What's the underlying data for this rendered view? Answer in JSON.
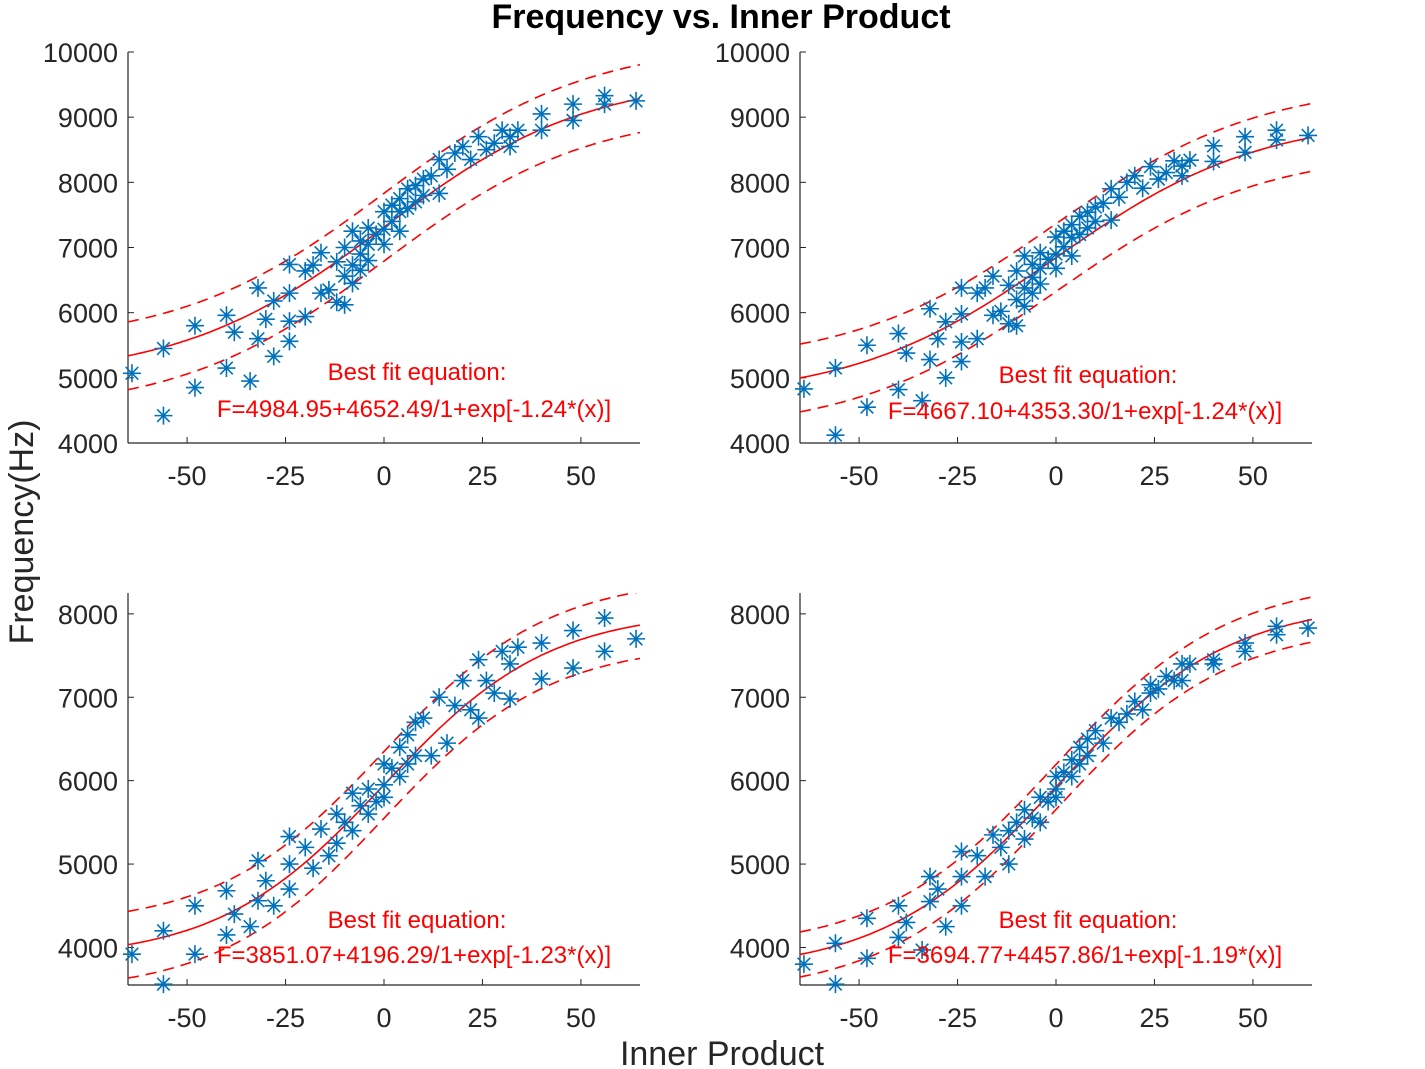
{
  "figure": {
    "title": "Frequency vs. Inner Product",
    "xlabel": "Inner Product",
    "ylabel": "Frequency(Hz)"
  },
  "chart_data": [
    {
      "type": "scatter",
      "position": "top-left",
      "xlim": [
        -65,
        65
      ],
      "ylim": [
        4000,
        10000
      ],
      "xticks": [
        -50,
        -25,
        0,
        25,
        50
      ],
      "yticks": [
        4000,
        5000,
        6000,
        7000,
        8000,
        9000,
        10000
      ],
      "ytick_labels": [
        "4000",
        "5000",
        "6000",
        "7000",
        "8000",
        "9000",
        "10000"
      ],
      "annotation": [
        "Best fit equation:",
        "F=4984.95+4652.49/1+exp[-1.24*(x)]"
      ],
      "fit": {
        "base": 4984.95,
        "amp": 4652.49,
        "center": 0,
        "scale": 26,
        "band": 520
      },
      "colors": {
        "points": "#0072BD",
        "fit": "#ff0000"
      },
      "points": [
        [
          -64,
          5070
        ],
        [
          -56,
          5450
        ],
        [
          -56,
          4420
        ],
        [
          -48,
          5800
        ],
        [
          -48,
          4850
        ],
        [
          -40,
          5960
        ],
        [
          -40,
          5150
        ],
        [
          -38,
          5700
        ],
        [
          -34,
          4950
        ],
        [
          -32,
          6380
        ],
        [
          -32,
          5600
        ],
        [
          -30,
          5900
        ],
        [
          -28,
          6180
        ],
        [
          -28,
          5330
        ],
        [
          -24,
          6740
        ],
        [
          -24,
          6300
        ],
        [
          -24,
          5870
        ],
        [
          -24,
          5560
        ],
        [
          -20,
          6640
        ],
        [
          -20,
          5940
        ],
        [
          -18,
          6730
        ],
        [
          -16,
          6920
        ],
        [
          -16,
          6300
        ],
        [
          -14,
          6350
        ],
        [
          -12,
          6780
        ],
        [
          -12,
          6160
        ],
        [
          -10,
          7000
        ],
        [
          -10,
          6560
        ],
        [
          -10,
          6120
        ],
        [
          -8,
          7250
        ],
        [
          -8,
          6730
        ],
        [
          -8,
          6450
        ],
        [
          -6,
          7100
        ],
        [
          -6,
          6900
        ],
        [
          -6,
          6650
        ],
        [
          -4,
          7300
        ],
        [
          -4,
          7050
        ],
        [
          -4,
          6800
        ],
        [
          -2,
          7200
        ],
        [
          0,
          7550
        ],
        [
          0,
          7280
        ],
        [
          0,
          7050
        ],
        [
          2,
          7650
        ],
        [
          2,
          7400
        ],
        [
          4,
          7550
        ],
        [
          4,
          7250
        ],
        [
          4,
          7750
        ],
        [
          6,
          7900
        ],
        [
          6,
          7600
        ],
        [
          8,
          7950
        ],
        [
          8,
          7700
        ],
        [
          10,
          8050
        ],
        [
          10,
          7800
        ],
        [
          12,
          8100
        ],
        [
          14,
          8350
        ],
        [
          14,
          7830
        ],
        [
          16,
          8200
        ],
        [
          18,
          8450
        ],
        [
          20,
          8550
        ],
        [
          22,
          8350
        ],
        [
          24,
          8700
        ],
        [
          26,
          8500
        ],
        [
          28,
          8600
        ],
        [
          30,
          8800
        ],
        [
          32,
          8700
        ],
        [
          32,
          8550
        ],
        [
          34,
          8800
        ],
        [
          40,
          9050
        ],
        [
          40,
          8800
        ],
        [
          48,
          9200
        ],
        [
          48,
          8950
        ],
        [
          56,
          9330
        ],
        [
          56,
          9200
        ],
        [
          64,
          9250
        ]
      ]
    },
    {
      "type": "scatter",
      "position": "top-right",
      "xlim": [
        -65,
        65
      ],
      "ylim": [
        4000,
        10000
      ],
      "xticks": [
        -50,
        -25,
        0,
        25,
        50
      ],
      "yticks": [
        4000,
        5000,
        6000,
        7000,
        8000,
        9000,
        10000
      ],
      "ytick_labels": [
        "4000",
        "5000",
        "6000",
        "7000",
        "8000",
        "9000",
        "10000"
      ],
      "annotation": [
        "Best fit equation:",
        "F=4667.10+4353.30/1+exp[-1.24*(x)]"
      ],
      "fit": {
        "base": 4667.1,
        "amp": 4353.3,
        "center": 0,
        "scale": 26,
        "band": 520
      },
      "colors": {
        "points": "#0072BD",
        "fit": "#ff0000"
      },
      "points": [
        [
          -64,
          4830
        ],
        [
          -56,
          5150
        ],
        [
          -56,
          4120
        ],
        [
          -48,
          5500
        ],
        [
          -48,
          4550
        ],
        [
          -40,
          5680
        ],
        [
          -40,
          4820
        ],
        [
          -38,
          5380
        ],
        [
          -34,
          4650
        ],
        [
          -32,
          6060
        ],
        [
          -32,
          5280
        ],
        [
          -30,
          5600
        ],
        [
          -28,
          5860
        ],
        [
          -28,
          5000
        ],
        [
          -24,
          6380
        ],
        [
          -24,
          5980
        ],
        [
          -24,
          5550
        ],
        [
          -24,
          5250
        ],
        [
          -20,
          6300
        ],
        [
          -20,
          5600
        ],
        [
          -18,
          6380
        ],
        [
          -16,
          6560
        ],
        [
          -16,
          5960
        ],
        [
          -14,
          6020
        ],
        [
          -12,
          6420
        ],
        [
          -12,
          5830
        ],
        [
          -10,
          6640
        ],
        [
          -10,
          6200
        ],
        [
          -10,
          5800
        ],
        [
          -8,
          6870
        ],
        [
          -8,
          6380
        ],
        [
          -8,
          6100
        ],
        [
          -6,
          6740
        ],
        [
          -6,
          6540
        ],
        [
          -6,
          6300
        ],
        [
          -4,
          6920
        ],
        [
          -4,
          6680
        ],
        [
          -4,
          6440
        ],
        [
          -2,
          6820
        ],
        [
          0,
          7160
        ],
        [
          0,
          6900
        ],
        [
          0,
          6680
        ],
        [
          2,
          7250
        ],
        [
          2,
          7010
        ],
        [
          4,
          7150
        ],
        [
          4,
          6870
        ],
        [
          4,
          7350
        ],
        [
          6,
          7480
        ],
        [
          6,
          7200
        ],
        [
          8,
          7540
        ],
        [
          8,
          7300
        ],
        [
          10,
          7620
        ],
        [
          10,
          7400
        ],
        [
          12,
          7680
        ],
        [
          14,
          7900
        ],
        [
          14,
          7420
        ],
        [
          16,
          7770
        ],
        [
          18,
          8000
        ],
        [
          20,
          8100
        ],
        [
          22,
          7910
        ],
        [
          24,
          8240
        ],
        [
          26,
          8050
        ],
        [
          28,
          8150
        ],
        [
          30,
          8330
        ],
        [
          32,
          8250
        ],
        [
          32,
          8100
        ],
        [
          34,
          8340
        ],
        [
          40,
          8560
        ],
        [
          40,
          8320
        ],
        [
          48,
          8700
        ],
        [
          48,
          8460
        ],
        [
          56,
          8800
        ],
        [
          56,
          8650
        ],
        [
          64,
          8720
        ]
      ]
    },
    {
      "type": "scatter",
      "position": "bottom-left",
      "xlim": [
        -65,
        65
      ],
      "ylim": [
        3550,
        8250
      ],
      "xticks": [
        -50,
        -25,
        0,
        25,
        50
      ],
      "yticks": [
        4000,
        5000,
        6000,
        7000,
        8000
      ],
      "ytick_labels": [
        "4000",
        "5000",
        "6000",
        "7000",
        "8000"
      ],
      "annotation": [
        "Best fit equation:",
        "F=3851.07+4196.29/1+exp[-1.23*(x)]"
      ],
      "fit": {
        "base": 3851.07,
        "amp": 4196.29,
        "center": 0,
        "scale": 21,
        "band": 400
      },
      "colors": {
        "points": "#0072BD",
        "fit": "#ff0000"
      },
      "points": [
        [
          -64,
          3920
        ],
        [
          -56,
          4200
        ],
        [
          -56,
          3560
        ],
        [
          -48,
          4500
        ],
        [
          -48,
          3920
        ],
        [
          -40,
          4680
        ],
        [
          -40,
          4150
        ],
        [
          -38,
          4400
        ],
        [
          -34,
          4250
        ],
        [
          -32,
          5040
        ],
        [
          -32,
          4560
        ],
        [
          -30,
          4800
        ],
        [
          -28,
          4500
        ],
        [
          -24,
          5330
        ],
        [
          -24,
          5000
        ],
        [
          -24,
          4700
        ],
        [
          -20,
          5200
        ],
        [
          -18,
          4950
        ],
        [
          -16,
          5420
        ],
        [
          -14,
          5100
        ],
        [
          -12,
          5600
        ],
        [
          -12,
          5250
        ],
        [
          -10,
          5500
        ],
        [
          -8,
          5850
        ],
        [
          -8,
          5400
        ],
        [
          -6,
          5700
        ],
        [
          -4,
          5900
        ],
        [
          -4,
          5600
        ],
        [
          -2,
          5750
        ],
        [
          0,
          6200
        ],
        [
          0,
          5950
        ],
        [
          0,
          5800
        ],
        [
          2,
          6150
        ],
        [
          4,
          6400
        ],
        [
          4,
          6050
        ],
        [
          6,
          6550
        ],
        [
          6,
          6200
        ],
        [
          8,
          6700
        ],
        [
          8,
          6300
        ],
        [
          10,
          6750
        ],
        [
          12,
          6300
        ],
        [
          14,
          7000
        ],
        [
          16,
          6450
        ],
        [
          18,
          6900
        ],
        [
          20,
          7200
        ],
        [
          22,
          6850
        ],
        [
          24,
          7450
        ],
        [
          24,
          6750
        ],
        [
          26,
          7200
        ],
        [
          28,
          7050
        ],
        [
          30,
          7550
        ],
        [
          32,
          7400
        ],
        [
          32,
          6980
        ],
        [
          34,
          7600
        ],
        [
          40,
          7650
        ],
        [
          40,
          7220
        ],
        [
          48,
          7800
        ],
        [
          48,
          7350
        ],
        [
          56,
          7950
        ],
        [
          56,
          7550
        ],
        [
          64,
          7700
        ]
      ]
    },
    {
      "type": "scatter",
      "position": "bottom-right",
      "xlim": [
        -65,
        65
      ],
      "ylim": [
        3550,
        8250
      ],
      "xticks": [
        -50,
        -25,
        0,
        25,
        50
      ],
      "yticks": [
        4000,
        5000,
        6000,
        7000,
        8000
      ],
      "ytick_labels": [
        "4000",
        "5000",
        "6000",
        "7000",
        "8000"
      ],
      "annotation": [
        "Best fit equation:",
        "F=3694.77+4457.86/1+exp[-1.19*(x)]"
      ],
      "fit": {
        "base": 3694.77,
        "amp": 4457.86,
        "center": 0,
        "scale": 22,
        "band": 270
      },
      "colors": {
        "points": "#0072BD",
        "fit": "#ff0000"
      },
      "points": [
        [
          -64,
          3800
        ],
        [
          -56,
          4050
        ],
        [
          -56,
          3560
        ],
        [
          -48,
          4350
        ],
        [
          -48,
          3870
        ],
        [
          -40,
          4500
        ],
        [
          -40,
          4120
        ],
        [
          -38,
          4300
        ],
        [
          -34,
          3970
        ],
        [
          -32,
          4850
        ],
        [
          -32,
          4550
        ],
        [
          -30,
          4700
        ],
        [
          -28,
          4250
        ],
        [
          -24,
          5150
        ],
        [
          -24,
          4850
        ],
        [
          -24,
          4500
        ],
        [
          -20,
          5100
        ],
        [
          -18,
          4850
        ],
        [
          -16,
          5350
        ],
        [
          -14,
          5200
        ],
        [
          -12,
          5400
        ],
        [
          -12,
          5000
        ],
        [
          -10,
          5500
        ],
        [
          -8,
          5650
        ],
        [
          -8,
          5300
        ],
        [
          -6,
          5550
        ],
        [
          -4,
          5800
        ],
        [
          -4,
          5500
        ],
        [
          -2,
          5750
        ],
        [
          0,
          6050
        ],
        [
          0,
          5900
        ],
        [
          0,
          5800
        ],
        [
          2,
          6100
        ],
        [
          4,
          6250
        ],
        [
          4,
          6050
        ],
        [
          6,
          6400
        ],
        [
          6,
          6200
        ],
        [
          8,
          6500
        ],
        [
          8,
          6300
        ],
        [
          10,
          6600
        ],
        [
          12,
          6450
        ],
        [
          14,
          6750
        ],
        [
          16,
          6700
        ],
        [
          18,
          6800
        ],
        [
          20,
          6950
        ],
        [
          22,
          6850
        ],
        [
          24,
          7150
        ],
        [
          24,
          7050
        ],
        [
          26,
          7100
        ],
        [
          28,
          7250
        ],
        [
          30,
          7200
        ],
        [
          32,
          7400
        ],
        [
          32,
          7200
        ],
        [
          34,
          7400
        ],
        [
          40,
          7450
        ],
        [
          40,
          7400
        ],
        [
          48,
          7650
        ],
        [
          48,
          7550
        ],
        [
          56,
          7850
        ],
        [
          56,
          7750
        ],
        [
          64,
          7830
        ]
      ]
    }
  ]
}
